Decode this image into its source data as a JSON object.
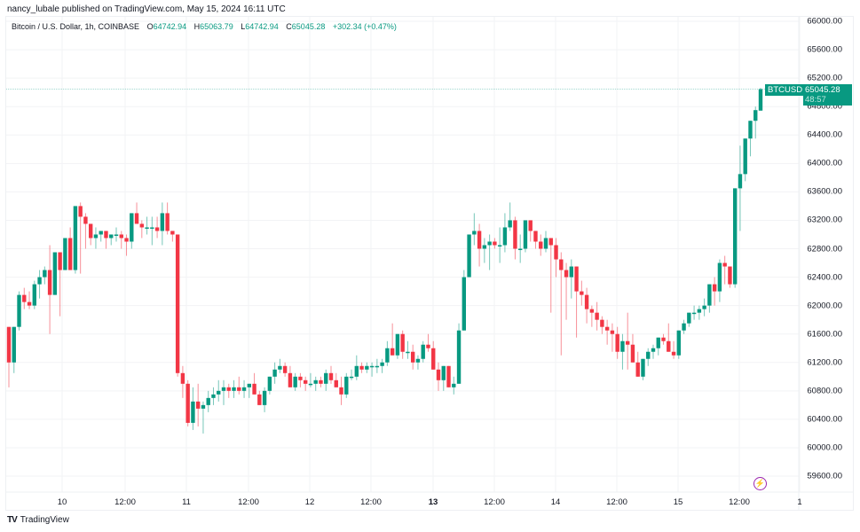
{
  "publisher": "nancy_lubale published on TradingView.com, May 15, 2024 16:11 UTC",
  "legend": {
    "symbol": "Bitcoin / U.S. Dollar, 1h, COINBASE",
    "open_label": "O",
    "open": "64742.94",
    "high_label": "H",
    "high": "65063.79",
    "low_label": "L",
    "low": "64742.94",
    "close_label": "C",
    "close": "65045.28",
    "change": "+302.34 (+0.47%)"
  },
  "price_tag": {
    "symbol": "BTCUSD",
    "price": "65045.28",
    "countdown": "48:57"
  },
  "footer": {
    "logo": "TV",
    "brand": "TradingView"
  },
  "colors": {
    "up": "#089981",
    "down": "#f23645",
    "grid": "#f2f3f5",
    "text": "#131722",
    "event": "#9c27b0"
  },
  "chart_data": {
    "type": "candlestick",
    "title": "Bitcoin / U.S. Dollar, 1h, COINBASE",
    "xlabel": "",
    "ylabel": "USD",
    "ylim": [
      59400,
      66200
    ],
    "y_ticks": [
      66000,
      65600,
      65200,
      64800,
      64400,
      64000,
      63600,
      63200,
      62800,
      62400,
      62000,
      61600,
      61200,
      60800,
      60400,
      60000,
      59600
    ],
    "x_ticks": [
      {
        "label": "10",
        "x": 70,
        "bold": false
      },
      {
        "label": "12:00",
        "x": 141,
        "bold": false
      },
      {
        "label": "11",
        "x": 210,
        "bold": false
      },
      {
        "label": "12:00",
        "x": 280,
        "bold": false
      },
      {
        "label": "12",
        "x": 349,
        "bold": false
      },
      {
        "label": "12:00",
        "x": 418,
        "bold": false
      },
      {
        "label": "13",
        "x": 488,
        "bold": true
      },
      {
        "label": "12:00",
        "x": 557,
        "bold": false
      },
      {
        "label": "14",
        "x": 626,
        "bold": false
      },
      {
        "label": "12:00",
        "x": 695,
        "bold": false
      },
      {
        "label": "15",
        "x": 764,
        "bold": false
      },
      {
        "label": "12:00",
        "x": 833,
        "bold": false
      },
      {
        "label": "1",
        "x": 901,
        "bold": false
      }
    ],
    "last_price": 65045.28,
    "candles": [
      [
        61700,
        61700,
        60850,
        61200
      ],
      [
        61200,
        61700,
        61050,
        61700
      ],
      [
        61700,
        62200,
        61650,
        62150
      ],
      [
        62150,
        62250,
        61950,
        62050
      ],
      [
        62050,
        62200,
        61950,
        62000
      ],
      [
        62000,
        62350,
        61950,
        62300
      ],
      [
        62300,
        62500,
        62100,
        62400
      ],
      [
        62400,
        62550,
        62300,
        62500
      ],
      [
        62500,
        62850,
        61600,
        62150
      ],
      [
        62150,
        62600,
        62150,
        62750
      ],
      [
        62750,
        62500,
        61850,
        62500
      ],
      [
        62500,
        62900,
        62500,
        62950
      ],
      [
        62950,
        63100,
        62500,
        62500
      ],
      [
        62500,
        63200,
        62450,
        63400
      ],
      [
        63400,
        63450,
        62450,
        63250
      ],
      [
        63250,
        63300,
        62800,
        63150
      ],
      [
        63150,
        63150,
        62850,
        62950
      ],
      [
        62950,
        63100,
        62800,
        63000
      ],
      [
        63000,
        63050,
        62900,
        63050
      ],
      [
        63050,
        63000,
        62800,
        62950
      ],
      [
        62950,
        63000,
        62850,
        63000
      ],
      [
        63000,
        63100,
        62900,
        63000
      ],
      [
        63000,
        63050,
        62800,
        62950
      ],
      [
        62950,
        63000,
        62700,
        62900
      ],
      [
        62900,
        63300,
        62800,
        63300
      ],
      [
        63300,
        63450,
        63150,
        63150
      ],
      [
        63150,
        63200,
        62950,
        63100
      ],
      [
        63100,
        63250,
        63000,
        63100
      ],
      [
        63100,
        63250,
        62850,
        63100
      ],
      [
        63100,
        63250,
        62950,
        63050
      ],
      [
        63050,
        63450,
        62850,
        63300
      ],
      [
        63300,
        63450,
        63000,
        63050
      ],
      [
        63050,
        63050,
        62900,
        63000
      ],
      [
        63000,
        63000,
        61000,
        61050
      ],
      [
        61050,
        61150,
        60700,
        60900
      ],
      [
        60900,
        60950,
        60300,
        60350
      ],
      [
        60350,
        60850,
        60250,
        60650
      ],
      [
        60650,
        60900,
        60300,
        60550
      ],
      [
        60550,
        60650,
        60200,
        60600
      ],
      [
        60600,
        60800,
        60500,
        60700
      ],
      [
        60700,
        60850,
        60600,
        60750
      ],
      [
        60750,
        60950,
        60650,
        60800
      ],
      [
        60800,
        60950,
        60600,
        60850
      ],
      [
        60850,
        60900,
        60700,
        60800
      ],
      [
        60800,
        60950,
        60700,
        60850
      ],
      [
        60850,
        61000,
        60750,
        60800
      ],
      [
        60800,
        60950,
        60700,
        60850
      ],
      [
        60850,
        60900,
        60700,
        60900
      ],
      [
        60900,
        61050,
        60800,
        60750
      ],
      [
        60750,
        60800,
        60600,
        60600
      ],
      [
        60600,
        60850,
        60500,
        60800
      ],
      [
        60800,
        61000,
        60750,
        61000
      ],
      [
        61000,
        61200,
        60900,
        61100
      ],
      [
        61100,
        61250,
        61050,
        61150
      ],
      [
        61150,
        61200,
        61000,
        61050
      ],
      [
        61050,
        61150,
        60900,
        60850
      ],
      [
        60850,
        61050,
        60800,
        61000
      ],
      [
        61000,
        61050,
        60850,
        60950
      ],
      [
        60950,
        61000,
        60800,
        60900
      ],
      [
        60900,
        61050,
        60850,
        60900
      ],
      [
        60900,
        61000,
        60800,
        60950
      ],
      [
        60950,
        61000,
        60850,
        60900
      ],
      [
        60900,
        61100,
        60800,
        61050
      ],
      [
        61050,
        61150,
        60900,
        60950
      ],
      [
        60950,
        61050,
        60850,
        60850
      ],
      [
        60850,
        61000,
        60600,
        60750
      ],
      [
        60750,
        61050,
        60700,
        61000
      ],
      [
        61000,
        61100,
        60950,
        61000
      ],
      [
        61000,
        61300,
        60950,
        61150
      ],
      [
        61150,
        61200,
        61050,
        61100
      ],
      [
        61100,
        61200,
        61050,
        61150
      ],
      [
        61150,
        61200,
        61000,
        61150
      ],
      [
        61150,
        61250,
        61050,
        61150
      ],
      [
        61150,
        61250,
        61050,
        61200
      ],
      [
        61200,
        61500,
        61150,
        61400
      ],
      [
        61400,
        61750,
        61300,
        61300
      ],
      [
        61300,
        61600,
        61250,
        61600
      ],
      [
        61600,
        61650,
        61250,
        61350
      ],
      [
        61350,
        61500,
        61250,
        61350
      ],
      [
        61350,
        61450,
        61100,
        61200
      ],
      [
        61200,
        61300,
        61100,
        61250
      ],
      [
        61250,
        61500,
        61200,
        61450
      ],
      [
        61450,
        61600,
        61350,
        61400
      ],
      [
        61400,
        61500,
        61100,
        61100
      ],
      [
        61100,
        61200,
        60800,
        60950
      ],
      [
        60950,
        61150,
        60800,
        61150
      ],
      [
        61150,
        61150,
        60850,
        60850
      ],
      [
        60850,
        61000,
        60750,
        60900
      ],
      [
        60900,
        61750,
        60900,
        61650
      ],
      [
        61650,
        62500,
        61650,
        62400
      ],
      [
        62400,
        62900,
        62400,
        63000
      ],
      [
        63000,
        63300,
        62850,
        63050
      ],
      [
        63050,
        63150,
        62550,
        62800
      ],
      [
        62800,
        62950,
        62600,
        62850
      ],
      [
        62850,
        63000,
        62500,
        62900
      ],
      [
        62900,
        62950,
        62800,
        62850
      ],
      [
        62850,
        63100,
        62600,
        62850
      ],
      [
        62850,
        63300,
        62750,
        63100
      ],
      [
        63100,
        63450,
        63050,
        63200
      ],
      [
        63200,
        63250,
        62650,
        62800
      ],
      [
        62800,
        63000,
        62600,
        62800
      ],
      [
        62800,
        63200,
        62750,
        63200
      ],
      [
        63200,
        63150,
        62900,
        63050
      ],
      [
        63050,
        63050,
        62800,
        62900
      ],
      [
        62900,
        63000,
        62700,
        62800
      ],
      [
        62800,
        63050,
        62750,
        62950
      ],
      [
        62950,
        62950,
        61900,
        62850
      ],
      [
        62850,
        62950,
        62400,
        62650
      ],
      [
        62650,
        62750,
        61300,
        62500
      ],
      [
        62500,
        62600,
        61800,
        62400
      ],
      [
        62400,
        62650,
        62100,
        62550
      ],
      [
        62550,
        62450,
        61550,
        62200
      ],
      [
        62200,
        62350,
        62000,
        62150
      ],
      [
        62150,
        62250,
        61750,
        61950
      ],
      [
        61950,
        62000,
        61700,
        61900
      ],
      [
        61900,
        62050,
        61650,
        61800
      ],
      [
        61800,
        61850,
        61600,
        61700
      ],
      [
        61700,
        61800,
        61450,
        61650
      ],
      [
        61650,
        61750,
        61350,
        61600
      ],
      [
        61600,
        61700,
        61250,
        61350
      ],
      [
        61350,
        61600,
        61100,
        61500
      ],
      [
        61500,
        61900,
        61100,
        61450
      ],
      [
        61450,
        61600,
        61300,
        61200
      ],
      [
        61200,
        61350,
        61050,
        61000
      ],
      [
        61000,
        61250,
        60950,
        61250
      ],
      [
        61250,
        61400,
        61150,
        61350
      ],
      [
        61350,
        61450,
        61250,
        61400
      ],
      [
        61400,
        61500,
        61300,
        61550
      ],
      [
        61550,
        61600,
        61450,
        61500
      ],
      [
        61500,
        61750,
        61400,
        61350
      ],
      [
        61350,
        61500,
        61250,
        61300
      ],
      [
        61300,
        61500,
        61250,
        61650
      ],
      [
        61650,
        61800,
        61600,
        61750
      ],
      [
        61750,
        61900,
        61700,
        61900
      ],
      [
        61900,
        62000,
        61800,
        61900
      ],
      [
        61900,
        62000,
        61800,
        61950
      ],
      [
        61950,
        62100,
        61850,
        62000
      ],
      [
        62000,
        62250,
        61900,
        62300
      ],
      [
        62300,
        62400,
        62000,
        62200
      ],
      [
        62200,
        62650,
        62050,
        62600
      ],
      [
        62600,
        62700,
        62300,
        62550
      ],
      [
        62550,
        62500,
        62250,
        62300
      ],
      [
        62300,
        63600,
        62250,
        63650
      ],
      [
        63650,
        64250,
        63050,
        63850
      ],
      [
        63850,
        64250,
        63750,
        64350
      ],
      [
        64350,
        64600,
        64100,
        64600
      ],
      [
        64600,
        64800,
        64350,
        64750
      ],
      [
        64742.94,
        65063.79,
        64742.94,
        65045.28
      ]
    ]
  }
}
